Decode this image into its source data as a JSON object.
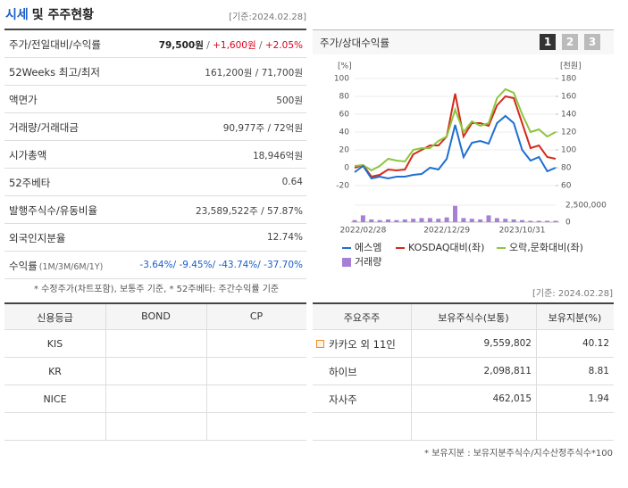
{
  "header": {
    "title": [
      "시세",
      "및 주주현황"
    ],
    "date": "[기준:2024.02.28]"
  },
  "summary": {
    "rows": [
      {
        "label": "주가/전일대비/수익률",
        "value": [
          {
            "text": "79,500원",
            "color": "#222222",
            "bold": true
          },
          {
            "text": " / ",
            "color": "#666666"
          },
          {
            "text": "+1,600원",
            "color": "#e0001a"
          },
          {
            "text": " / ",
            "color": "#666666"
          },
          {
            "text": "+2.05%",
            "color": "#e0001a"
          }
        ]
      },
      {
        "label": "52Weeks 최고/최저",
        "value": [
          {
            "text": "161,200원 / 71,700원",
            "color": "#444444"
          }
        ]
      },
      {
        "label": "액면가",
        "value": [
          {
            "text": "500원",
            "color": "#444444"
          }
        ]
      },
      {
        "label": "거래량/거래대금",
        "value": [
          {
            "text": "90,977주 / 72억원",
            "color": "#444444"
          }
        ]
      },
      {
        "label": "시가총액",
        "value": [
          {
            "text": "18,946억원",
            "color": "#444444"
          }
        ]
      },
      {
        "label": "52주베타",
        "value": [
          {
            "text": "0.64",
            "color": "#444444"
          }
        ]
      },
      {
        "label": "발행주식수/유동비율",
        "value": [
          {
            "text": "23,589,522주 / 57.87%",
            "color": "#444444"
          }
        ]
      },
      {
        "label": "외국인지분율",
        "value": [
          {
            "text": "12.74%",
            "color": "#444444"
          }
        ]
      },
      {
        "label": "수익률",
        "sublabel": "(1M/3M/6M/1Y)",
        "value": [
          {
            "text": "-3.64%/ -9.45%/ -43.74%/ -37.70%",
            "color": "#1a5fc7"
          }
        ]
      }
    ],
    "note": "* 수정주가(차트포함), 보통주 기준, * 52주베타: 주간수익률 기준"
  },
  "panel": {
    "title": "주가/상대수익률",
    "buttons": [
      "1",
      "2",
      "3"
    ]
  },
  "chart_data": {
    "type": "line",
    "categories": [
      null,
      "2022/02/28",
      null,
      null,
      null,
      null,
      null,
      null,
      null,
      null,
      null,
      "2022/12/29",
      null,
      null,
      null,
      null,
      null,
      null,
      null,
      null,
      "2023/10/31",
      null,
      null,
      null,
      null
    ],
    "ylabel": "[%]",
    "y2label": "[천원]",
    "ylim": [
      -20,
      100
    ],
    "yticks": [
      -20,
      0,
      20,
      40,
      60,
      80,
      100
    ],
    "y2lim": [
      60,
      180
    ],
    "y2ticks": [
      60,
      80,
      100,
      120,
      140,
      160,
      180
    ],
    "vlim": [
      0,
      2500000
    ],
    "vticks": [
      0,
      {
        "value": 2500000,
        "label": "2,500,000"
      }
    ],
    "grid": true,
    "series": [
      {
        "name": "에스엠",
        "color": "#1f6fd1",
        "axis": "y2",
        "values": [
          75,
          82,
          68,
          70,
          68,
          70,
          70,
          72,
          73,
          80,
          78,
          90,
          128,
          92,
          108,
          110,
          107,
          130,
          138,
          130,
          100,
          88,
          92,
          76,
          80
        ]
      },
      {
        "name": "KOSDAQ대비(좌)",
        "color": "#d42a1a",
        "values": [
          0,
          3,
          -10,
          -8,
          -2,
          -3,
          -2,
          15,
          20,
          25,
          25,
          35,
          83,
          35,
          50,
          50,
          47,
          70,
          80,
          78,
          50,
          22,
          25,
          12,
          10
        ]
      },
      {
        "name": "오락,문화대비(좌)",
        "color": "#8cc63e",
        "values": [
          2,
          3,
          -3,
          2,
          10,
          8,
          7,
          20,
          22,
          22,
          30,
          35,
          65,
          40,
          52,
          47,
          50,
          78,
          88,
          84,
          60,
          40,
          43,
          35,
          40
        ]
      },
      {
        "name": "거래량",
        "color": "#a77fd6",
        "type": "bar",
        "axis": "volume",
        "values": [
          300000,
          1000000,
          400000,
          300000,
          400000,
          300000,
          400000,
          500000,
          600000,
          600000,
          500000,
          700000,
          2400000,
          600000,
          500000,
          400000,
          1000000,
          600000,
          500000,
          400000,
          300000,
          200000,
          200000,
          200000,
          200000
        ]
      }
    ]
  },
  "ratings": {
    "columns": [
      "신용등급",
      "BOND",
      "CP"
    ],
    "rows": [
      [
        "KIS"
      ],
      [
        "KR"
      ],
      [
        "NICE"
      ]
    ]
  },
  "holders": {
    "date": "[기준: 2024.02.28]",
    "columns": [
      "주요주주",
      "보유주식수(보통)",
      "보유지분(%)"
    ],
    "rows": [
      [
        "카카오 외 11인",
        "9,559,802",
        "40.12"
      ],
      [
        "하이브",
        "2,098,811",
        "8.81"
      ],
      [
        "자사주",
        "462,015",
        "1.94"
      ]
    ],
    "note": "* 보유지분 : 보유지분주식수/지수산정주식수*100"
  }
}
